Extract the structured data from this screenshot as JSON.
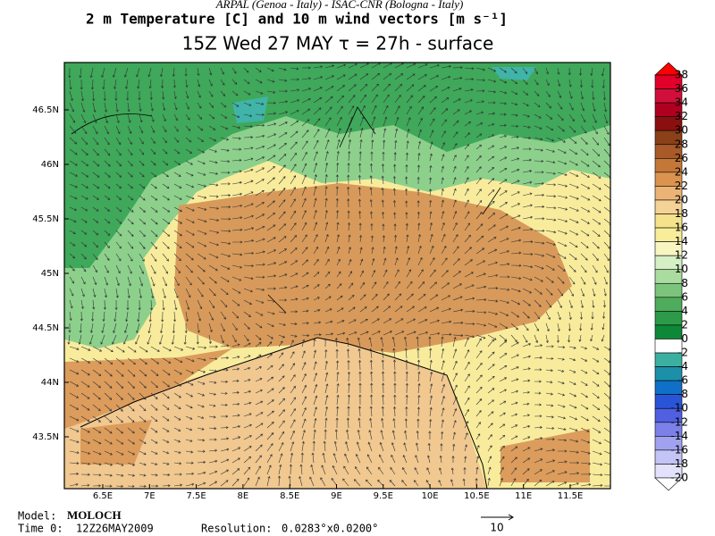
{
  "header": {
    "institutions": "ARPAL (Genoa - Italy)  -  ISAC-CNR (Bologna - Italy)",
    "title": "2 m Temperature [C] and 10 m wind vectors [m s⁻¹]",
    "subtitle": "15Z Wed 27 MAY  τ = 27h  -  surface"
  },
  "map": {
    "lat_labels": [
      "46.5N",
      "46N",
      "45.5N",
      "45N",
      "44.5N",
      "44N",
      "43.5N"
    ],
    "lon_labels": [
      "6.5E",
      "7E",
      "7.5E",
      "8E",
      "8.5E",
      "9E",
      "9.5E",
      "10E",
      "10.5E",
      "11E",
      "11.5E"
    ]
  },
  "colorbar": {
    "labels": [
      38,
      36,
      34,
      32,
      30,
      28,
      26,
      24,
      22,
      20,
      18,
      16,
      14,
      12,
      10,
      8,
      6,
      4,
      2,
      0,
      -2,
      -4,
      -6,
      -8,
      -10,
      -12,
      -14,
      -16,
      -18,
      -20
    ]
  },
  "footer": {
    "model_label": "Model:",
    "model": "MOLOCH",
    "time_label": "Time 0:",
    "time": "12Z26MAY2009",
    "resolution_label": "Resolution:",
    "resolution": "0.0283°x0.0200°",
    "wind_reference": "10"
  }
}
